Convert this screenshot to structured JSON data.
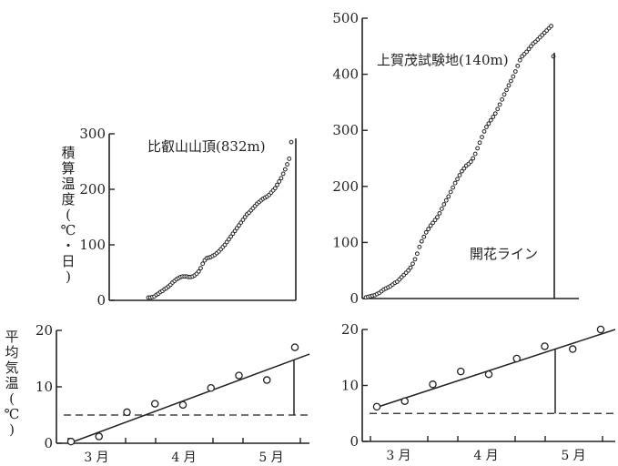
{
  "cum_axis_label": [
    "積",
    "算",
    "温",
    "度",
    "(",
    "℃",
    "・",
    "日",
    ")"
  ],
  "mean_axis_label": [
    "平",
    "均",
    "気",
    "温",
    "(",
    "℃",
    ")"
  ],
  "chart_data": [
    {
      "type": "scatter",
      "title": "比叡山山頂(832m)",
      "ylabel": "積算温度(℃・日)",
      "ylim": [
        0,
        300
      ],
      "yticks": [
        "0",
        "100",
        "200",
        "300"
      ],
      "x_index": [
        0,
        1,
        2,
        3,
        4,
        5,
        6,
        7,
        8,
        9,
        10,
        11,
        12,
        13,
        14,
        15,
        16,
        17,
        18,
        19,
        20,
        21,
        22,
        23,
        24,
        25,
        26,
        27,
        28,
        29,
        30,
        31,
        32,
        33,
        34,
        35,
        36,
        37,
        38,
        39,
        40,
        41,
        42,
        43,
        44,
        45,
        46,
        47,
        48,
        49,
        50,
        51,
        52,
        53,
        54,
        55,
        56,
        57,
        58,
        59,
        60,
        61,
        62,
        63,
        64,
        65,
        66,
        67,
        68,
        69,
        70,
        71
      ],
      "y": [
        5,
        5,
        6,
        7,
        10,
        12,
        15,
        17,
        20,
        22,
        25,
        28,
        32,
        35,
        38,
        40,
        42,
        43,
        43,
        43,
        42,
        42,
        43,
        45,
        48,
        52,
        58,
        66,
        72,
        76,
        77,
        78,
        80,
        82,
        85,
        88,
        92,
        96,
        100,
        105,
        110,
        115,
        120,
        125,
        130,
        135,
        140,
        145,
        150,
        155,
        158,
        162,
        166,
        170,
        174,
        177,
        180,
        183,
        185,
        187,
        190,
        194,
        198,
        202,
        208,
        214,
        220,
        228,
        236,
        245,
        255,
        285
      ]
    },
    {
      "type": "scatter",
      "title": "上賀茂試験地(140m)",
      "annotation": "開花ライン",
      "ylim": [
        0,
        500
      ],
      "yticks": [
        "0",
        "100",
        "200",
        "300",
        "400",
        "500"
      ],
      "x_index": [
        0,
        1,
        2,
        3,
        4,
        5,
        6,
        7,
        8,
        9,
        10,
        11,
        12,
        13,
        14,
        15,
        16,
        17,
        18,
        19,
        20,
        21,
        22,
        23,
        24,
        25,
        26,
        27,
        28,
        29,
        30,
        31,
        32,
        33,
        34,
        35,
        36,
        37,
        38,
        39,
        40,
        41,
        42,
        43,
        44,
        45,
        46,
        47,
        48,
        49,
        50,
        51,
        52,
        53,
        54,
        55,
        56,
        57,
        58,
        59,
        60,
        61,
        62,
        63,
        64,
        65,
        66,
        67,
        68,
        69,
        70,
        71,
        72,
        73,
        74,
        75,
        76,
        77,
        78,
        79,
        80,
        81,
        82,
        83,
        84
      ],
      "y": [
        2,
        3,
        4,
        5,
        6,
        8,
        10,
        13,
        16,
        18,
        20,
        22,
        25,
        28,
        30,
        34,
        38,
        42,
        46,
        50,
        55,
        62,
        70,
        80,
        92,
        102,
        110,
        118,
        124,
        130,
        135,
        140,
        145,
        152,
        160,
        168,
        175,
        182,
        190,
        198,
        206,
        213,
        220,
        227,
        232,
        237,
        240,
        244,
        250,
        258,
        268,
        278,
        288,
        298,
        306,
        312,
        318,
        324,
        330,
        338,
        346,
        355,
        364,
        372,
        380,
        388,
        396,
        405,
        415,
        425,
        432,
        436,
        440,
        445,
        450,
        455,
        458,
        462,
        466,
        470,
        474,
        478,
        482,
        486,
        432
      ]
    },
    {
      "type": "scatter",
      "ylabel": "平均気温(℃)",
      "ylim": [
        0,
        20
      ],
      "yticks": [
        "0",
        "10",
        "20"
      ],
      "categories": [
        "3 月",
        "4 月",
        "5 月"
      ],
      "points": [
        0.3,
        1.2,
        5.5,
        7.0,
        6.8,
        9.8,
        12.0,
        11.2,
        17.0
      ],
      "trend": [
        0,
        15.8
      ],
      "threshold": 5
    },
    {
      "type": "scatter",
      "ylim": [
        0,
        20
      ],
      "yticks": [
        "0",
        "10",
        "20"
      ],
      "categories": [
        "3 月",
        "4 月",
        "5 月"
      ],
      "points": [
        6.2,
        7.2,
        10.2,
        12.5,
        12.0,
        14.8,
        17.0,
        16.5,
        20.0
      ],
      "trend": [
        6.0,
        20.0
      ],
      "threshold": 5
    }
  ]
}
